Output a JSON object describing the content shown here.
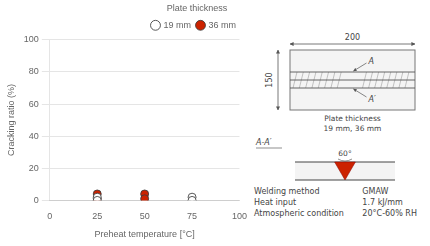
{
  "chart_data": {
    "type": "scatter",
    "x_label": "Preheat temperature [°C]",
    "y_label": "Cracking ratio (%)",
    "xlim": [
      0,
      100
    ],
    "ylim": [
      0,
      100
    ],
    "xticks": [
      0,
      25,
      50,
      75,
      100
    ],
    "yticks": [
      0,
      20,
      40,
      60,
      80,
      100
    ],
    "grid": "y",
    "legend": "upper right",
    "legend_title": "Plate thickness",
    "series": [
      {
        "name": "19 mm",
        "color": "#ffffff",
        "marker": "circle",
        "x": [
          25,
          25,
          75,
          75
        ],
        "values": [
          2,
          0,
          2,
          0
        ]
      },
      {
        "name": "36 mm",
        "color": "#cc2200",
        "marker": "circle",
        "x": [
          25,
          25,
          50,
          50
        ],
        "values": [
          4,
          1,
          4,
          1
        ]
      }
    ],
    "annotations": {
      "diagram": {
        "width": "200",
        "height": "150",
        "section_top": "A",
        "section_bottom": "A′",
        "plate": "Plate thickness\n19 mm, 36 mm"
      },
      "section": {
        "title": "A-A′",
        "angle": "60°",
        "weld_color": "#cc2200"
      },
      "conditions": [
        [
          "Welding method",
          "GMAW"
        ],
        [
          "Heat input",
          "1.7 kJ/mm"
        ],
        [
          "Atmospheric condition",
          "20°C-60% RH"
        ]
      ]
    }
  }
}
